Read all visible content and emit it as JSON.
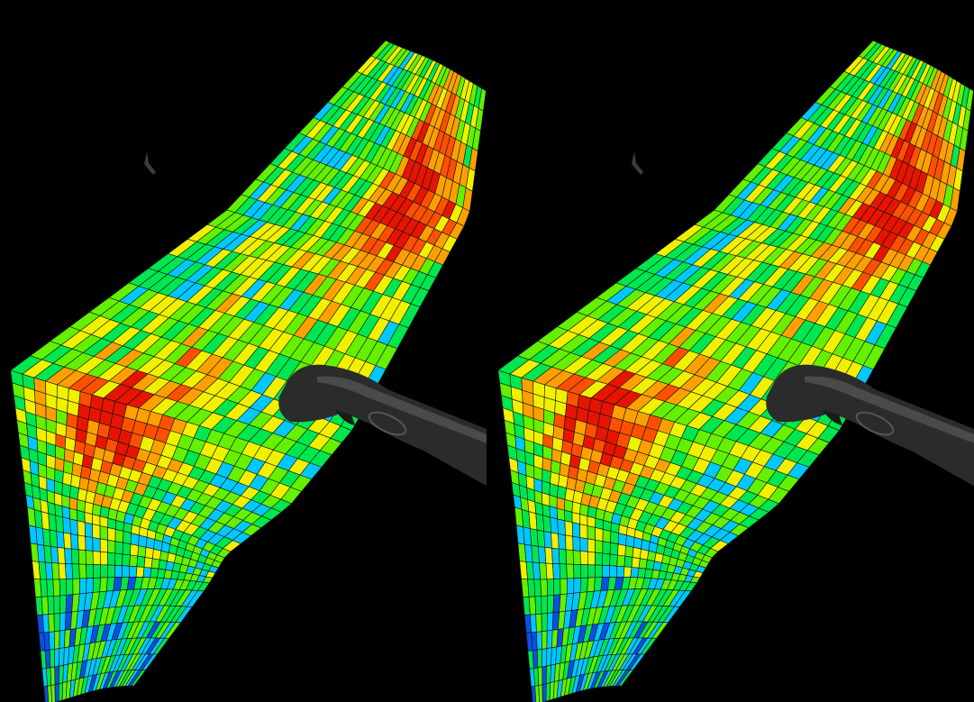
{
  "scene": {
    "type": "vr-stereo-view",
    "background_color": "#000000",
    "views": [
      {
        "eye": "left"
      },
      {
        "eye": "right"
      }
    ]
  },
  "surface": {
    "description": "3d-heatmap-surface",
    "grid_rows": 44,
    "grid_cols": 26,
    "colormap": [
      "#0a50e6",
      "#00c8ff",
      "#00e650",
      "#64f000",
      "#f0f000",
      "#ffa000",
      "#ff5000",
      "#e61400"
    ],
    "cell_outline_color": "#0a140a"
  },
  "controller": {
    "icon": "vr-controller-icon",
    "body_color": "#2b2b2b",
    "highlight_color": "#4a4a4a"
  },
  "distant_object": {
    "icon": "small-marker-icon",
    "color": "#3c3c3c"
  }
}
